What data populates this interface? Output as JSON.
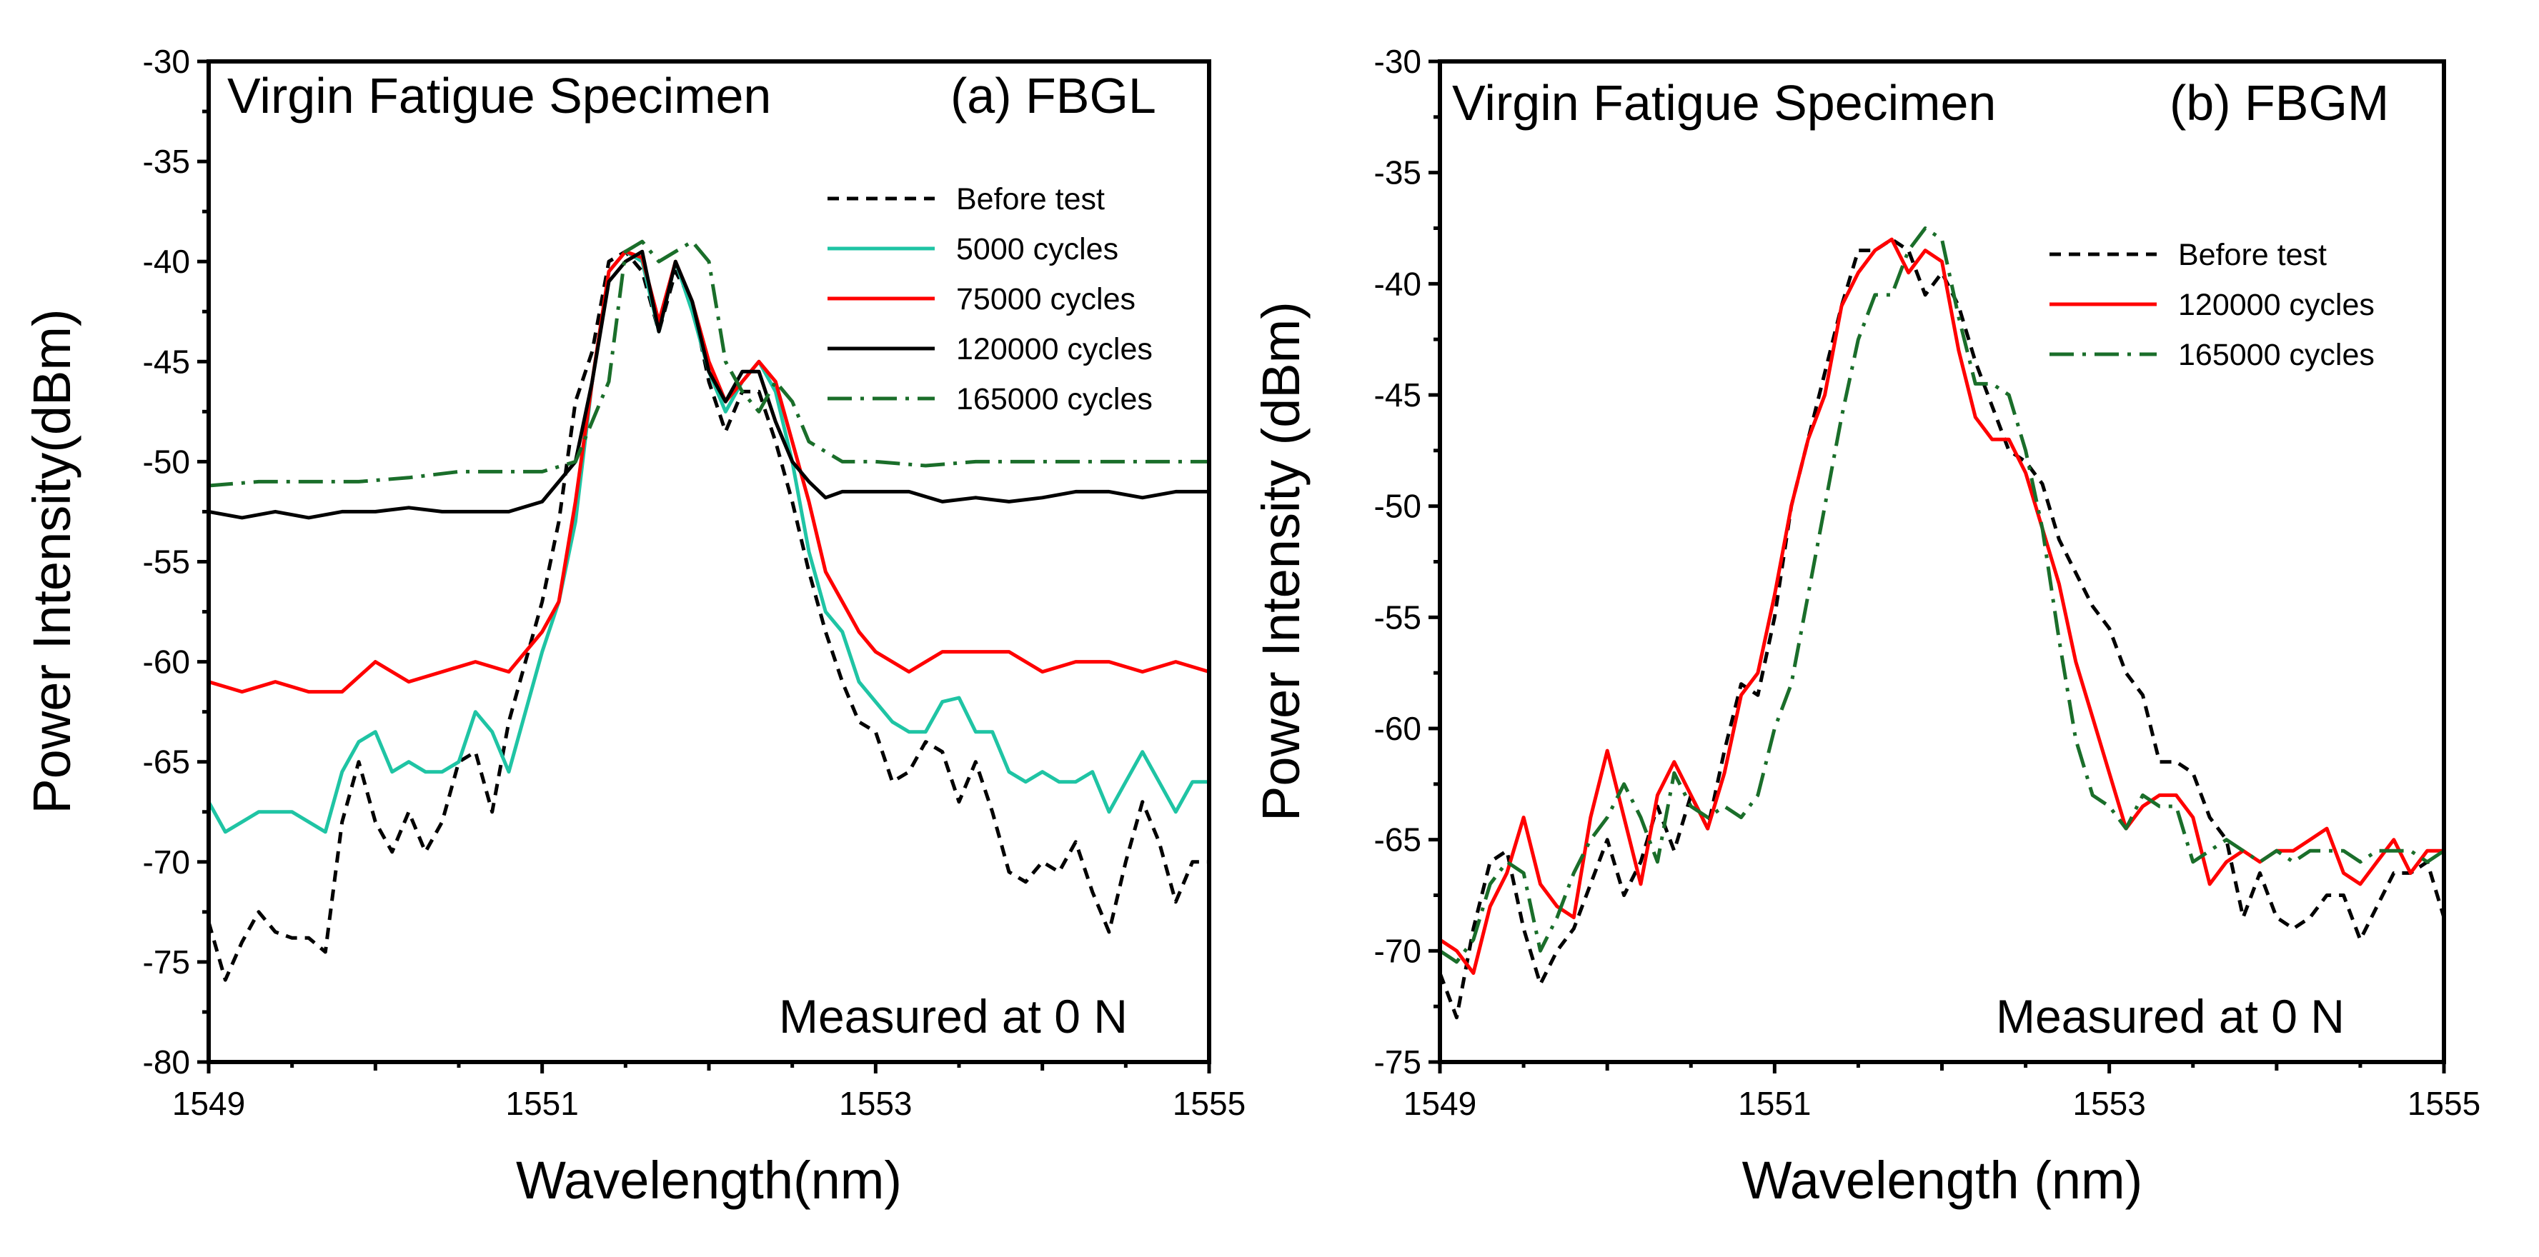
{
  "chart_data": [
    {
      "type": "line",
      "title": "Virgin  Fatigue Specimen",
      "panel_label": "(a) FBGL",
      "note": "Measured at 0 N",
      "xlabel": "Wavelength(nm)",
      "ylabel": "Power Intensity(dBm)",
      "xlim": [
        1549,
        1555
      ],
      "ylim": [
        -80,
        -30
      ],
      "xticks": [
        1549,
        1551,
        1553,
        1555
      ],
      "yticks": [
        -80,
        -75,
        -70,
        -65,
        -60,
        -55,
        -50,
        -45,
        -40,
        -35,
        -30
      ],
      "legend_position": "upper-right",
      "series": [
        {
          "name": "Before test",
          "color": "#000000",
          "style": "dashed",
          "x": [
            1549.0,
            1549.1,
            1549.2,
            1549.3,
            1549.4,
            1549.5,
            1549.6,
            1549.7,
            1549.8,
            1549.9,
            1550.0,
            1550.1,
            1550.2,
            1550.3,
            1550.4,
            1550.5,
            1550.6,
            1550.7,
            1550.8,
            1550.9,
            1551.0,
            1551.1,
            1551.2,
            1551.3,
            1551.4,
            1551.5,
            1551.6,
            1551.7,
            1551.8,
            1551.9,
            1552.0,
            1552.1,
            1552.2,
            1552.3,
            1552.4,
            1552.5,
            1552.6,
            1552.7,
            1552.8,
            1552.9,
            1553.0,
            1553.1,
            1553.2,
            1553.3,
            1553.4,
            1553.5,
            1553.6,
            1553.7,
            1553.8,
            1553.9,
            1554.0,
            1554.1,
            1554.2,
            1554.3,
            1554.4,
            1554.5,
            1554.6,
            1554.7,
            1554.8,
            1554.9,
            1555.0
          ],
          "y": [
            -73.0,
            -75.9,
            -74.0,
            -72.5,
            -73.5,
            -73.8,
            -73.8,
            -74.5,
            -68.0,
            -65.0,
            -68.0,
            -69.5,
            -67.5,
            -69.5,
            -68.0,
            -65.0,
            -64.5,
            -67.5,
            -63.0,
            -60.0,
            -57.0,
            -53.0,
            -47.0,
            -44.5,
            -40.0,
            -39.5,
            -40.5,
            -43.5,
            -40.5,
            -42.0,
            -46.0,
            -48.5,
            -46.5,
            -46.5,
            -49.0,
            -52.0,
            -55.5,
            -58.5,
            -61.0,
            -63.0,
            -63.5,
            -66.0,
            -65.5,
            -64.0,
            -64.5,
            -67.0,
            -65.0,
            -67.5,
            -70.5,
            -71.0,
            -70.0,
            -70.5,
            -69.0,
            -71.5,
            -73.5,
            -70.0,
            -67.0,
            -69.0,
            -72.0,
            -70.0,
            -70.0
          ]
        },
        {
          "name": "5000 cycles",
          "color": "#1fc4a4",
          "style": "solid",
          "x": [
            1549.0,
            1549.1,
            1549.2,
            1549.3,
            1549.4,
            1549.5,
            1549.6,
            1549.7,
            1549.8,
            1549.9,
            1550.0,
            1550.1,
            1550.2,
            1550.3,
            1550.4,
            1550.5,
            1550.6,
            1550.7,
            1550.8,
            1550.9,
            1551.0,
            1551.1,
            1551.2,
            1551.3,
            1551.4,
            1551.5,
            1551.6,
            1551.7,
            1551.8,
            1551.9,
            1552.0,
            1552.1,
            1552.2,
            1552.3,
            1552.4,
            1552.5,
            1552.6,
            1552.7,
            1552.8,
            1552.9,
            1553.0,
            1553.1,
            1553.2,
            1553.3,
            1553.4,
            1553.5,
            1553.6,
            1553.7,
            1553.8,
            1553.9,
            1554.0,
            1554.1,
            1554.2,
            1554.3,
            1554.4,
            1554.5,
            1554.6,
            1554.7,
            1554.8,
            1554.9,
            1555.0
          ],
          "y": [
            -67.0,
            -68.5,
            -68.0,
            -67.5,
            -67.5,
            -67.5,
            -68.0,
            -68.5,
            -65.5,
            -64.0,
            -63.5,
            -65.5,
            -65.0,
            -65.5,
            -65.5,
            -65.0,
            -62.5,
            -63.5,
            -65.5,
            -62.5,
            -59.5,
            -57.0,
            -53.0,
            -46.0,
            -40.5,
            -39.5,
            -40.0,
            -43.5,
            -40.0,
            -42.5,
            -45.5,
            -47.5,
            -46.0,
            -45.0,
            -46.5,
            -50.0,
            -54.5,
            -57.5,
            -58.5,
            -61.0,
            -62.0,
            -63.0,
            -63.5,
            -63.5,
            -62.0,
            -61.8,
            -63.5,
            -63.5,
            -65.5,
            -66.0,
            -65.5,
            -66.0,
            -66.0,
            -65.5,
            -67.5,
            -66.0,
            -64.5,
            -66.0,
            -67.5,
            -66.0,
            -66.0
          ]
        },
        {
          "name": "75000 cycles",
          "color": "#ff0000",
          "style": "solid",
          "x": [
            1549.0,
            1549.2,
            1549.4,
            1549.6,
            1549.8,
            1550.0,
            1550.2,
            1550.4,
            1550.6,
            1550.8,
            1551.0,
            1551.1,
            1551.2,
            1551.3,
            1551.4,
            1551.5,
            1551.6,
            1551.7,
            1551.8,
            1551.9,
            1552.0,
            1552.1,
            1552.2,
            1552.3,
            1552.4,
            1552.5,
            1552.6,
            1552.7,
            1552.8,
            1552.9,
            1553.0,
            1553.2,
            1553.4,
            1553.6,
            1553.8,
            1554.0,
            1554.2,
            1554.4,
            1554.6,
            1554.8,
            1555.0
          ],
          "y": [
            -61.0,
            -61.5,
            -61.0,
            -61.5,
            -61.5,
            -60.0,
            -61.0,
            -60.5,
            -60.0,
            -60.5,
            -58.5,
            -57.0,
            -52.0,
            -46.0,
            -40.5,
            -39.5,
            -39.8,
            -43.0,
            -40.0,
            -42.0,
            -45.0,
            -47.0,
            -46.0,
            -45.0,
            -46.0,
            -49.0,
            -52.0,
            -55.5,
            -57.0,
            -58.5,
            -59.5,
            -60.5,
            -59.5,
            -59.5,
            -59.5,
            -60.5,
            -60.0,
            -60.0,
            -60.5,
            -60.0,
            -60.5
          ]
        },
        {
          "name": "120000 cycles",
          "color": "#000000",
          "style": "solid",
          "x": [
            1549.0,
            1549.2,
            1549.4,
            1549.6,
            1549.8,
            1550.0,
            1550.2,
            1550.4,
            1550.6,
            1550.8,
            1551.0,
            1551.1,
            1551.2,
            1551.3,
            1551.4,
            1551.5,
            1551.6,
            1551.7,
            1551.8,
            1551.9,
            1552.0,
            1552.1,
            1552.2,
            1552.3,
            1552.4,
            1552.5,
            1552.6,
            1552.7,
            1552.8,
            1553.0,
            1553.2,
            1553.4,
            1553.6,
            1553.8,
            1554.0,
            1554.2,
            1554.4,
            1554.6,
            1554.8,
            1555.0
          ],
          "y": [
            -52.5,
            -52.8,
            -52.5,
            -52.8,
            -52.5,
            -52.5,
            -52.3,
            -52.5,
            -52.5,
            -52.5,
            -52.0,
            -51.0,
            -50.0,
            -46.0,
            -41.0,
            -40.0,
            -39.5,
            -43.5,
            -40.0,
            -42.0,
            -45.5,
            -47.0,
            -45.5,
            -45.5,
            -48.0,
            -50.0,
            -51.0,
            -51.8,
            -51.5,
            -51.5,
            -51.5,
            -52.0,
            -51.8,
            -52.0,
            -51.8,
            -51.5,
            -51.5,
            -51.8,
            -51.5,
            -51.5
          ]
        },
        {
          "name": "165000 cycles",
          "color": "#1a6e2a",
          "style": "dashdot",
          "x": [
            1549.0,
            1549.3,
            1549.6,
            1549.9,
            1550.2,
            1550.5,
            1550.8,
            1551.0,
            1551.2,
            1551.4,
            1551.5,
            1551.6,
            1551.7,
            1551.8,
            1551.9,
            1552.0,
            1552.1,
            1552.2,
            1552.3,
            1552.4,
            1552.5,
            1552.6,
            1552.7,
            1552.8,
            1553.0,
            1553.3,
            1553.6,
            1553.9,
            1554.2,
            1554.5,
            1554.8,
            1555.0
          ],
          "y": [
            -51.2,
            -51.0,
            -51.0,
            -51.0,
            -50.8,
            -50.5,
            -50.5,
            -50.5,
            -50.0,
            -46.0,
            -39.5,
            -39.0,
            -40.0,
            -39.5,
            -39.0,
            -40.0,
            -45.0,
            -46.5,
            -47.5,
            -46.0,
            -47.0,
            -49.0,
            -49.5,
            -50.0,
            -50.0,
            -50.2,
            -50.0,
            -50.0,
            -50.0,
            -50.0,
            -50.0,
            -50.0
          ]
        }
      ]
    },
    {
      "type": "line",
      "title": "Virgin  Fatigue Specimen",
      "panel_label": "(b) FBGM",
      "note": "Measured at 0 N",
      "xlabel": "Wavelength (nm)",
      "ylabel": "Power Intensity (dBm)",
      "xlim": [
        1549,
        1555
      ],
      "ylim": [
        -75,
        -30
      ],
      "xticks": [
        1549,
        1551,
        1553,
        1555
      ],
      "yticks": [
        -75,
        -70,
        -65,
        -60,
        -55,
        -50,
        -45,
        -40,
        -35,
        -30
      ],
      "legend_position": "upper-right",
      "series": [
        {
          "name": "Before test",
          "color": "#000000",
          "style": "dashed",
          "x": [
            1549.0,
            1549.1,
            1549.2,
            1549.3,
            1549.4,
            1549.5,
            1549.6,
            1549.7,
            1549.8,
            1549.9,
            1550.0,
            1550.1,
            1550.2,
            1550.3,
            1550.4,
            1550.5,
            1550.6,
            1550.7,
            1550.8,
            1550.9,
            1551.0,
            1551.1,
            1551.2,
            1551.3,
            1551.4,
            1551.5,
            1551.6,
            1551.7,
            1551.8,
            1551.9,
            1552.0,
            1552.1,
            1552.2,
            1552.3,
            1552.4,
            1552.5,
            1552.6,
            1552.7,
            1552.8,
            1552.9,
            1553.0,
            1553.1,
            1553.2,
            1553.3,
            1553.4,
            1553.5,
            1553.6,
            1553.7,
            1553.8,
            1553.9,
            1554.0,
            1554.1,
            1554.2,
            1554.3,
            1554.4,
            1554.5,
            1554.6,
            1554.7,
            1554.8,
            1554.9,
            1555.0
          ],
          "y": [
            -71.0,
            -73.0,
            -69.0,
            -66.0,
            -65.5,
            -69.0,
            -71.5,
            -70.0,
            -69.0,
            -67.0,
            -65.0,
            -67.5,
            -66.0,
            -63.5,
            -65.5,
            -63.0,
            -64.5,
            -61.0,
            -58.0,
            -58.5,
            -55.0,
            -50.0,
            -47.0,
            -44.0,
            -41.0,
            -38.5,
            -38.5,
            -38.0,
            -38.5,
            -40.5,
            -39.5,
            -41.0,
            -43.5,
            -45.5,
            -47.5,
            -48.0,
            -49.0,
            -51.5,
            -53.0,
            -54.5,
            -55.5,
            -57.5,
            -58.5,
            -61.5,
            -61.5,
            -62.0,
            -64.0,
            -65.0,
            -68.5,
            -66.5,
            -68.5,
            -69.0,
            -68.5,
            -67.5,
            -67.5,
            -69.5,
            -68.0,
            -66.5,
            -66.5,
            -66.0,
            -68.5
          ]
        },
        {
          "name": "120000 cycles",
          "color": "#ff0000",
          "style": "solid",
          "x": [
            1549.0,
            1549.1,
            1549.2,
            1549.3,
            1549.4,
            1549.5,
            1549.6,
            1549.7,
            1549.8,
            1549.9,
            1550.0,
            1550.1,
            1550.2,
            1550.3,
            1550.4,
            1550.5,
            1550.6,
            1550.7,
            1550.8,
            1550.9,
            1551.0,
            1551.1,
            1551.2,
            1551.3,
            1551.4,
            1551.5,
            1551.6,
            1551.7,
            1551.8,
            1551.9,
            1552.0,
            1552.1,
            1552.2,
            1552.3,
            1552.4,
            1552.5,
            1552.6,
            1552.7,
            1552.8,
            1552.9,
            1553.0,
            1553.1,
            1553.2,
            1553.3,
            1553.4,
            1553.5,
            1553.6,
            1553.7,
            1553.8,
            1553.9,
            1554.0,
            1554.1,
            1554.2,
            1554.3,
            1554.4,
            1554.5,
            1554.6,
            1554.7,
            1554.8,
            1554.9,
            1555.0
          ],
          "y": [
            -69.5,
            -70.0,
            -71.0,
            -68.0,
            -66.5,
            -64.0,
            -67.0,
            -68.0,
            -68.5,
            -64.0,
            -61.0,
            -64.0,
            -67.0,
            -63.0,
            -61.5,
            -63.0,
            -64.5,
            -62.0,
            -58.5,
            -57.5,
            -54.0,
            -50.0,
            -47.0,
            -45.0,
            -41.0,
            -39.5,
            -38.5,
            -38.0,
            -39.5,
            -38.5,
            -39.0,
            -43.0,
            -46.0,
            -47.0,
            -47.0,
            -48.5,
            -51.0,
            -53.5,
            -57.0,
            -59.5,
            -62.0,
            -64.5,
            -63.5,
            -63.0,
            -63.0,
            -64.0,
            -67.0,
            -66.0,
            -65.5,
            -66.0,
            -65.5,
            -65.5,
            -65.0,
            -64.5,
            -66.5,
            -67.0,
            -66.0,
            -65.0,
            -66.5,
            -65.5,
            -65.5
          ]
        },
        {
          "name": "165000 cycles",
          "color": "#1a6e2a",
          "style": "dashdot",
          "x": [
            1549.0,
            1549.1,
            1549.2,
            1549.3,
            1549.4,
            1549.5,
            1549.6,
            1549.7,
            1549.8,
            1549.9,
            1550.0,
            1550.1,
            1550.2,
            1550.3,
            1550.4,
            1550.5,
            1550.6,
            1550.7,
            1550.8,
            1550.9,
            1551.0,
            1551.1,
            1551.2,
            1551.3,
            1551.4,
            1551.5,
            1551.6,
            1551.7,
            1551.8,
            1551.9,
            1552.0,
            1552.1,
            1552.2,
            1552.3,
            1552.4,
            1552.5,
            1552.6,
            1552.7,
            1552.8,
            1552.9,
            1553.0,
            1553.1,
            1553.2,
            1553.3,
            1553.4,
            1553.5,
            1553.6,
            1553.7,
            1553.8,
            1553.9,
            1554.0,
            1554.1,
            1554.2,
            1554.3,
            1554.4,
            1554.5,
            1554.6,
            1554.7,
            1554.8,
            1554.9,
            1555.0
          ],
          "y": [
            -70.0,
            -70.5,
            -69.5,
            -67.0,
            -66.0,
            -66.5,
            -70.0,
            -68.5,
            -66.5,
            -65.0,
            -64.0,
            -62.5,
            -64.0,
            -66.0,
            -62.0,
            -63.5,
            -64.0,
            -63.5,
            -64.0,
            -63.0,
            -60.0,
            -58.0,
            -54.0,
            -50.0,
            -46.0,
            -42.5,
            -40.5,
            -40.5,
            -38.5,
            -37.5,
            -38.0,
            -41.5,
            -44.5,
            -44.5,
            -45.0,
            -47.5,
            -51.0,
            -56.0,
            -60.5,
            -63.0,
            -63.5,
            -64.5,
            -63.0,
            -63.5,
            -63.5,
            -66.0,
            -65.5,
            -65.0,
            -65.5,
            -66.0,
            -65.5,
            -66.0,
            -65.5,
            -65.5,
            -65.5,
            -66.0,
            -65.5,
            -65.5,
            -65.5,
            -66.0,
            -65.5
          ]
        }
      ]
    }
  ]
}
